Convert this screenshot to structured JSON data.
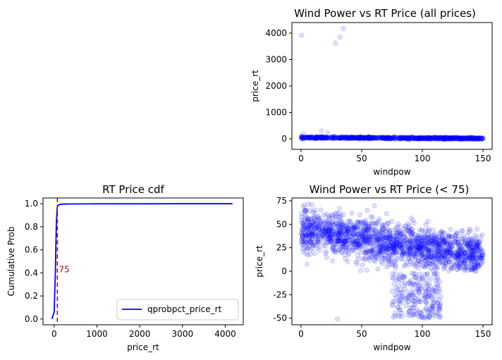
{
  "chart_data": [
    {
      "id": "scatter_all",
      "type": "scatter",
      "title": "Wind Power vs RT Price (all prices)",
      "xlabel": "windpow",
      "ylabel": "price_rt",
      "xlim": [
        -7.5,
        157.5
      ],
      "ylim": [
        -400,
        4400
      ],
      "xticks": [
        0,
        50,
        100,
        150
      ],
      "yticks": [
        0,
        1000,
        2000,
        3000,
        4000
      ],
      "color": "#0000ff",
      "alpha": 0.12,
      "grid": false,
      "outliers": [
        {
          "x": 0.5,
          "y": 3920
        },
        {
          "x": 28.5,
          "y": 3620
        },
        {
          "x": 32,
          "y": 3840
        },
        {
          "x": 35,
          "y": 4170
        },
        {
          "x": 17,
          "y": 300
        },
        {
          "x": 2,
          "y": 180
        },
        {
          "x": 22,
          "y": 230
        }
      ],
      "bulk_description": "dense band of points for windpow 0-150 with price_rt roughly -50 to 100"
    },
    {
      "id": "cdf",
      "type": "line",
      "title": "RT Price cdf",
      "xlabel": "price_rt",
      "ylabel": "Cumulative Prob",
      "xlim": [
        -260,
        4420
      ],
      "ylim": [
        -0.05,
        1.05
      ],
      "xticks": [
        0,
        1000,
        2000,
        3000,
        4000
      ],
      "yticks": [
        0.0,
        0.2,
        0.4,
        0.6,
        0.8,
        1.0
      ],
      "series": [
        {
          "name": "qprobpct_price_rt",
          "color": "#0000ff",
          "x": [
            -52,
            0,
            25,
            50,
            65,
            75,
            90,
            120,
            200,
            400,
            1000,
            2000,
            3000,
            4170
          ],
          "y": [
            0.0,
            0.06,
            0.35,
            0.8,
            0.93,
            0.97,
            0.985,
            0.993,
            0.997,
            0.998,
            0.999,
            0.9993,
            0.9996,
            1.0
          ]
        }
      ],
      "vline": {
        "x": 75,
        "color": "#cc0000",
        "style": "dashed",
        "label": "75",
        "label_y": 0.43
      },
      "legend": "lower right"
    },
    {
      "id": "scatter_lt75",
      "type": "scatter",
      "title": "Wind Power vs RT Price (< 75)",
      "xlabel": "windpow",
      "ylabel": "price_rt",
      "xlim": [
        -7.5,
        157.5
      ],
      "ylim": [
        -57,
        78
      ],
      "xticks": [
        0,
        50,
        100,
        150
      ],
      "yticks": [
        -50,
        -25,
        0,
        25,
        50,
        75
      ],
      "color": "#0000ff",
      "alpha": 0.12,
      "grid": false,
      "bulk_description": "main cloud trending from ~45 at windpow 0 to ~15 at windpow 150; secondary negative-price cluster for windpow 75-115 at roughly -50 to 0"
    }
  ]
}
